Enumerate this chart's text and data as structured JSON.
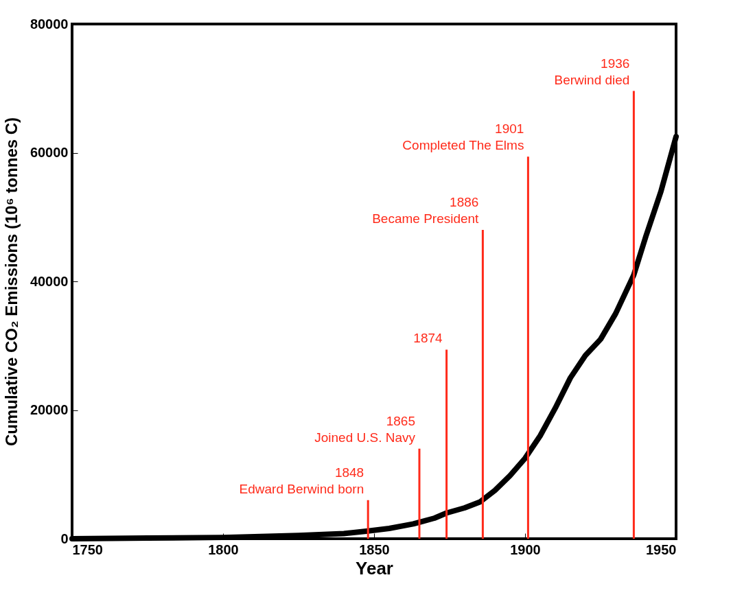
{
  "chart_data": {
    "type": "line",
    "xlabel": "Year",
    "ylabel": "Cumulative CO₂ Emissions (10⁶ tonnes C)",
    "x": [
      1750,
      1775,
      1800,
      1825,
      1840,
      1848,
      1855,
      1863,
      1870,
      1874,
      1880,
      1885,
      1890,
      1895,
      1900,
      1905,
      1910,
      1915,
      1920,
      1925,
      1930,
      1936,
      1940,
      1945,
      1950
    ],
    "series": [
      {
        "color": "#000000",
        "values": [
          0,
          100,
          200,
          500,
          800,
          1200,
          1600,
          2300,
          3200,
          4000,
          4800,
          5700,
          7500,
          9800,
          12500,
          16000,
          20300,
          25000,
          28500,
          31000,
          35000,
          41000,
          47000,
          54000,
          62500
        ]
      },
      {
        "type": "bar",
        "color": "#ff2a1a",
        "x": [
          1848,
          1865,
          1874,
          1886,
          1901,
          1936
        ],
        "values": [
          6000,
          14000,
          29400,
          48000,
          59400,
          69600
        ]
      }
    ],
    "xlim": [
      1750,
      1950
    ],
    "xticks": [
      1750,
      1800,
      1850,
      1900,
      1950
    ],
    "ylim": [
      0,
      80000
    ],
    "yticks": [
      0,
      20000,
      40000,
      60000,
      80000
    ],
    "annotations": [
      {
        "text": "1848",
        "x": 1848,
        "y": 6000
      },
      {
        "text": "Edward Berwind born",
        "x": 1848,
        "y": 6000
      },
      {
        "text": "1865",
        "x": 1865,
        "y": 14000
      },
      {
        "text": "Joined U.S. Navy",
        "x": 1865,
        "y": 14000
      },
      {
        "text": "1874",
        "x": 1874,
        "y": 29400
      },
      {
        "text": "1886",
        "x": 1886,
        "y": 48000
      },
      {
        "text": "Became President",
        "x": 1886,
        "y": 48000
      },
      {
        "text": "1901",
        "x": 1901,
        "y": 59400
      },
      {
        "text": "Completed The Elms",
        "x": 1901,
        "y": 59400
      },
      {
        "text": "1936",
        "x": 1936,
        "y": 69600
      },
      {
        "text": "Berwind died",
        "x": 1936,
        "y": 69600
      }
    ]
  }
}
